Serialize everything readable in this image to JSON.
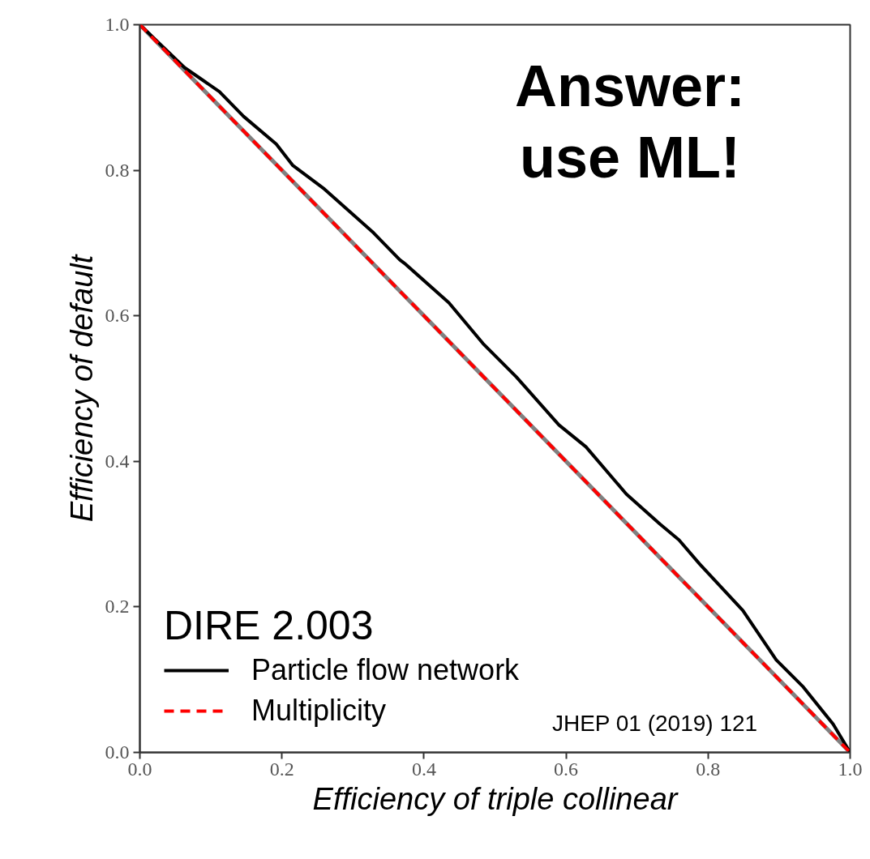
{
  "chart_data": {
    "type": "line",
    "xlabel": "Efficiency of triple collinear",
    "ylabel": "Efficiency of default",
    "legend_title": "DIRE 2.003",
    "annotations": [
      "Answer:\nuse ML!",
      "JHEP 01 (2019) 121"
    ],
    "series": [
      {
        "color": "#808080",
        "line_style": "solid",
        "x": [
          0,
          1
        ],
        "values": [
          1,
          0
        ]
      },
      {
        "name": "Particle flow network",
        "color": "#000000",
        "line_style": "solid",
        "x": [
          0,
          0.063,
          0.112,
          0.146,
          0.192,
          0.215,
          0.26,
          0.329,
          0.366,
          0.374,
          0.435,
          0.483,
          0.53,
          0.59,
          0.628,
          0.685,
          0.732,
          0.759,
          0.788,
          0.849,
          0.896,
          0.934,
          0.976,
          1
        ],
        "values": [
          1,
          0.941,
          0.908,
          0.874,
          0.836,
          0.807,
          0.774,
          0.714,
          0.677,
          0.671,
          0.618,
          0.562,
          0.516,
          0.45,
          0.42,
          0.355,
          0.314,
          0.292,
          0.259,
          0.195,
          0.127,
          0.09,
          0.039,
          0
        ]
      },
      {
        "name": "Multiplicity",
        "color": "#ff0000",
        "line_style": "dashed",
        "x": [
          0,
          1
        ],
        "values": [
          1,
          0
        ]
      }
    ],
    "xlim": [
      0,
      1
    ],
    "ylim": [
      0,
      1
    ],
    "xticks": [
      {
        "value": 0,
        "label": "0.0"
      },
      0.2,
      0.4,
      0.6,
      0.8,
      {
        "value": 1,
        "label": "1.0"
      }
    ],
    "yticks": [
      {
        "value": 0,
        "label": "0.0"
      },
      0.2,
      0.4,
      0.6,
      0.8,
      {
        "value": 1,
        "label": "1.0"
      }
    ],
    "grid": false,
    "legend": "bottom left",
    "marker": "none"
  }
}
